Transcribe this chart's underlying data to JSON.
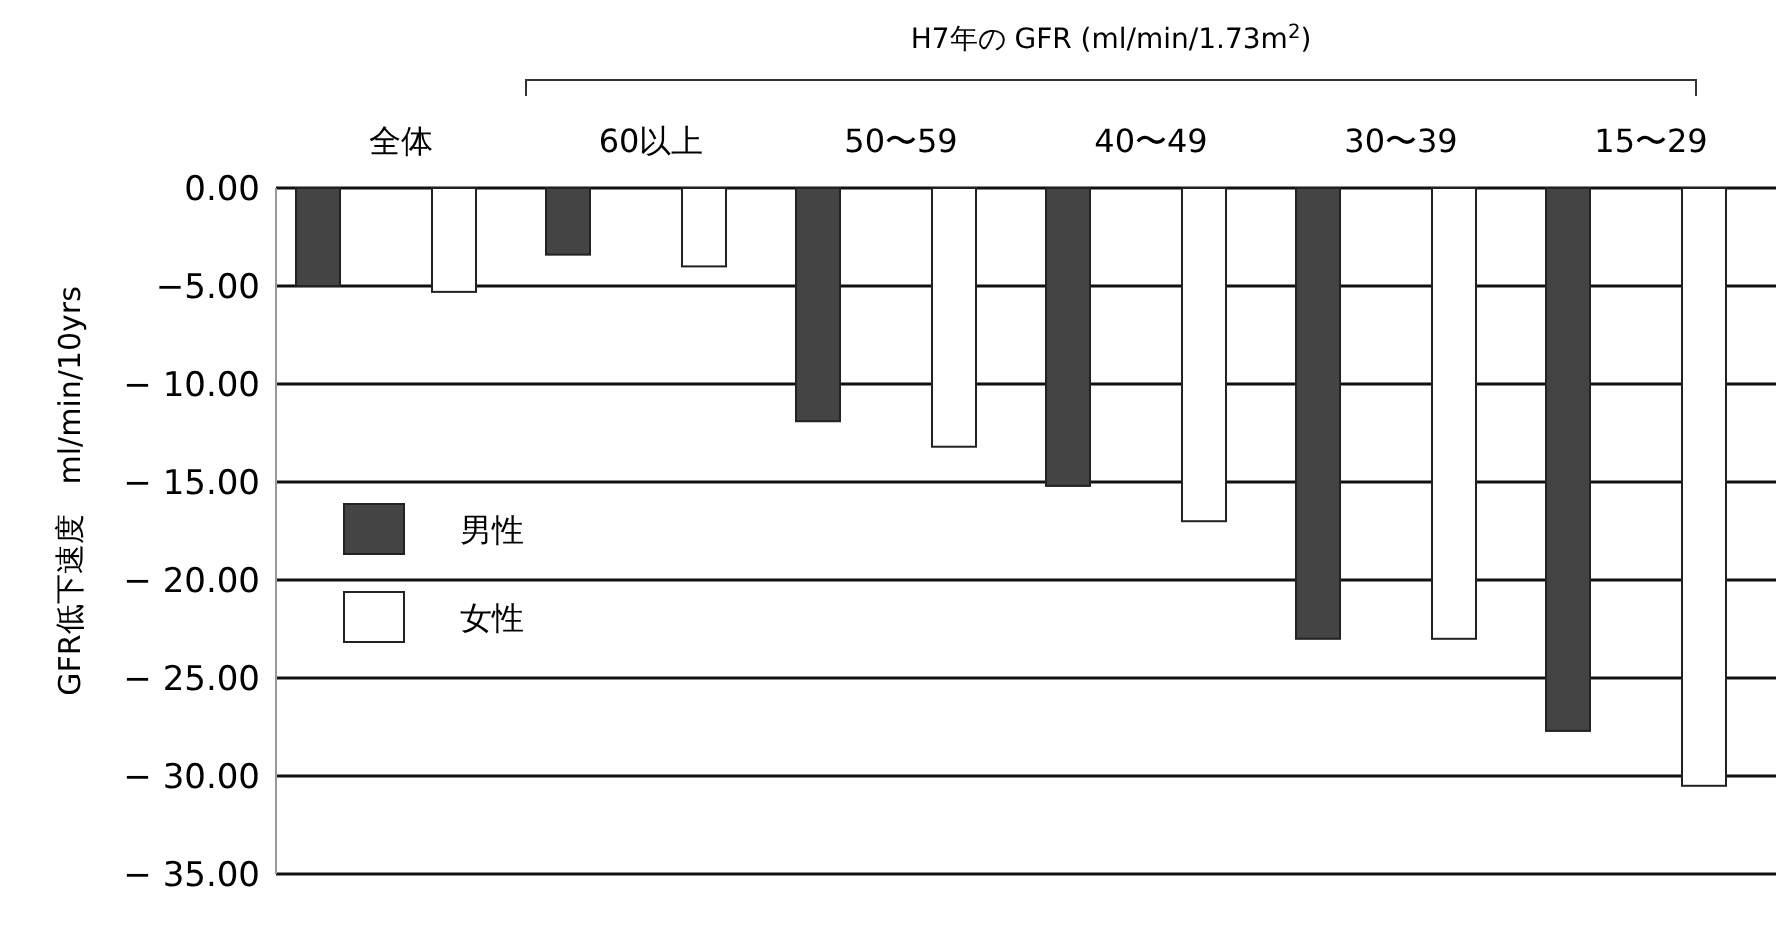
{
  "chart_data": {
    "type": "bar",
    "xlabel": "H7年の GFR (ml/min/1.73m$^{2}$)",
    "ylabel": "GFR低下速度　ml/min/10yrs",
    "categories": [
      "全体",
      "60以上",
      "50〜59",
      "40〜49",
      "30〜39",
      "15〜29"
    ],
    "series": [
      {
        "name": "男性",
        "color": "#444444",
        "values": [
          -5.0,
          -3.4,
          -11.9,
          -15.2,
          -23.0,
          -27.7
        ]
      },
      {
        "name": "女性",
        "color": "#ffffff",
        "values": [
          -5.3,
          -4.0,
          -13.2,
          -17.0,
          -23.0,
          -30.5
        ]
      }
    ],
    "ylim": [
      -35,
      0
    ],
    "yticks": [
      {
        "value": 0,
        "label": "0.00"
      },
      {
        "value": -5,
        "label": "−5.00"
      },
      {
        "value": -10,
        "label": "− 10.00"
      },
      {
        "value": -15,
        "label": "− 15.00"
      },
      {
        "value": -20,
        "label": "− 20.00"
      },
      {
        "value": -25,
        "label": "− 25.00"
      },
      {
        "value": -30,
        "label": "− 30.00"
      },
      {
        "value": -35,
        "label": "− 35.00"
      }
    ],
    "grid": "y",
    "legend": "left"
  }
}
